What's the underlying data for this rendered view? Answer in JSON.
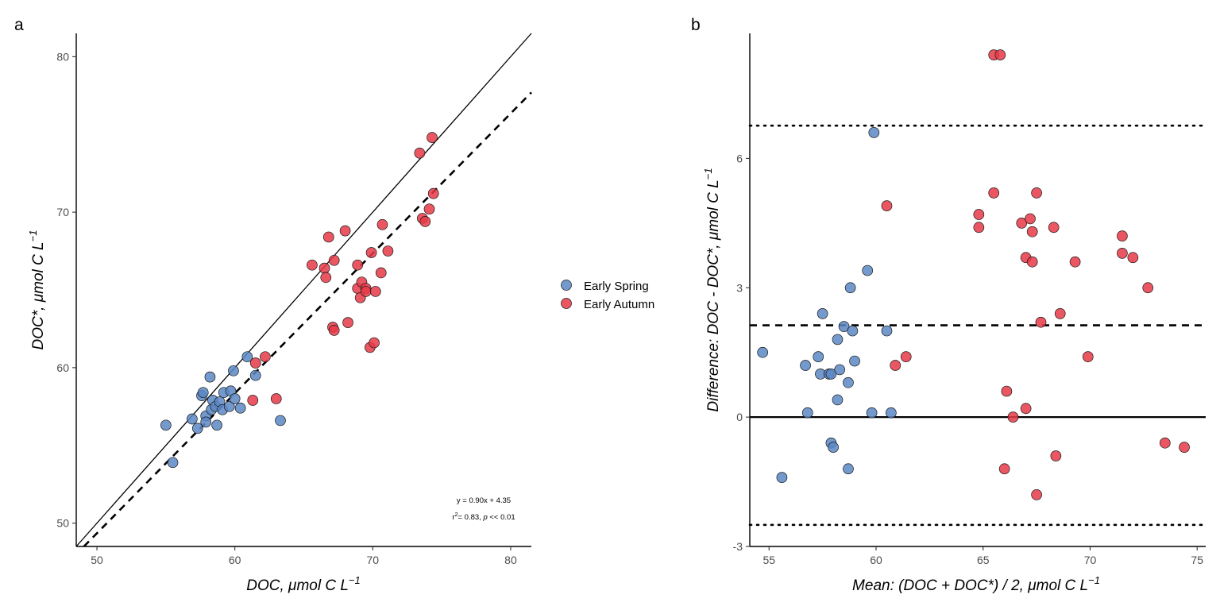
{
  "chart_data": [
    {
      "panel_label": "a",
      "type": "scatter",
      "xlabel": {
        "main": "DOC, ",
        "unit": "μmol C L",
        "sup": "−1"
      },
      "ylabel": {
        "main": "DOC*, ",
        "unit": "μmol C L",
        "sup": "−1"
      },
      "xlim": [
        48.5,
        81.5
      ],
      "ylim": [
        48.5,
        81.5
      ],
      "xticks": [
        50,
        60,
        70,
        80
      ],
      "yticks": [
        50,
        60,
        70,
        80
      ],
      "grid": false,
      "lines": [
        {
          "name": "1:1",
          "style": "solid",
          "slope": 1,
          "intercept": 0
        },
        {
          "name": "regression",
          "style": "dashed",
          "slope": 0.9,
          "intercept": 4.35
        }
      ],
      "annotation": {
        "equation": "y = 0.90x + 4.35",
        "r2_prefix": "r",
        "r2_sup": "2",
        "r2_value": "= 0.83, ",
        "p_italic": "p",
        "p_value": " << 0.01"
      },
      "series": [
        {
          "name": "Early Spring",
          "color": "#5B87C4",
          "points": [
            [
              55.0,
              56.3
            ],
            [
              55.5,
              53.9
            ],
            [
              56.9,
              56.7
            ],
            [
              57.3,
              56.1
            ],
            [
              57.6,
              58.2
            ],
            [
              57.7,
              58.4
            ],
            [
              57.9,
              56.9
            ],
            [
              57.9,
              56.5
            ],
            [
              58.2,
              59.4
            ],
            [
              58.3,
              57.3
            ],
            [
              58.4,
              57.9
            ],
            [
              58.6,
              57.5
            ],
            [
              58.7,
              56.3
            ],
            [
              58.9,
              57.8
            ],
            [
              59.2,
              58.4
            ],
            [
              59.1,
              57.3
            ],
            [
              59.6,
              57.5
            ],
            [
              59.7,
              58.5
            ],
            [
              59.9,
              59.8
            ],
            [
              60.0,
              58.0
            ],
            [
              60.4,
              57.4
            ],
            [
              60.9,
              60.7
            ],
            [
              61.5,
              59.5
            ],
            [
              63.3,
              56.6
            ]
          ]
        },
        {
          "name": "Early Autumn",
          "color": "#E63946",
          "points": [
            [
              61.3,
              57.9
            ],
            [
              61.5,
              60.3
            ],
            [
              62.2,
              60.7
            ],
            [
              63.0,
              58.0
            ],
            [
              65.6,
              66.6
            ],
            [
              66.5,
              66.4
            ],
            [
              66.6,
              65.8
            ],
            [
              66.8,
              68.4
            ],
            [
              67.1,
              62.6
            ],
            [
              67.2,
              62.4
            ],
            [
              67.2,
              66.9
            ],
            [
              68.0,
              68.8
            ],
            [
              68.2,
              62.9
            ],
            [
              68.9,
              66.6
            ],
            [
              68.9,
              65.1
            ],
            [
              69.1,
              64.5
            ],
            [
              69.2,
              65.5
            ],
            [
              69.5,
              65.1
            ],
            [
              69.5,
              64.9
            ],
            [
              69.8,
              61.3
            ],
            [
              69.9,
              67.4
            ],
            [
              70.1,
              61.6
            ],
            [
              70.2,
              64.9
            ],
            [
              70.6,
              66.1
            ],
            [
              70.7,
              69.2
            ],
            [
              71.1,
              67.5
            ],
            [
              73.4,
              73.8
            ],
            [
              73.6,
              69.6
            ],
            [
              73.8,
              69.4
            ],
            [
              74.1,
              70.2
            ],
            [
              74.3,
              74.8
            ],
            [
              74.4,
              71.2
            ]
          ]
        }
      ]
    },
    {
      "panel_label": "b",
      "type": "scatter",
      "xlabel": {
        "main": "Mean: (DOC + DOC*) / 2, ",
        "unit": "μmol C L",
        "sup": "−1"
      },
      "ylabel": {
        "main": "Difference: DOC - DOC*, ",
        "unit": "μmol C L",
        "sup": "−1"
      },
      "xlim": [
        54.1,
        75.4
      ],
      "ylim": [
        -3.0,
        8.9
      ],
      "xticks": [
        55,
        60,
        65,
        70,
        75
      ],
      "yticks": [
        -3,
        0,
        3,
        6
      ],
      "grid": false,
      "hlines": [
        {
          "name": "zero",
          "style": "solid",
          "y": 0
        },
        {
          "name": "mean-difference",
          "style": "dashed",
          "y": 2.13
        },
        {
          "name": "upper-limit",
          "style": "dotted",
          "y": 6.76
        },
        {
          "name": "lower-limit",
          "style": "dotted",
          "y": -2.5
        }
      ],
      "series": [
        {
          "name": "Early Spring",
          "color": "#5B87C4",
          "points": [
            [
              54.7,
              1.5
            ],
            [
              55.6,
              -1.4
            ],
            [
              56.7,
              1.2
            ],
            [
              56.8,
              0.1
            ],
            [
              57.3,
              1.4
            ],
            [
              57.4,
              1.0
            ],
            [
              57.5,
              2.4
            ],
            [
              57.8,
              1.0
            ],
            [
              57.9,
              -0.6
            ],
            [
              57.9,
              1.0
            ],
            [
              58.0,
              -0.7
            ],
            [
              58.2,
              1.8
            ],
            [
              58.2,
              0.4
            ],
            [
              58.3,
              1.1
            ],
            [
              58.5,
              2.1
            ],
            [
              58.7,
              0.8
            ],
            [
              58.7,
              -1.2
            ],
            [
              58.8,
              3.0
            ],
            [
              58.9,
              2.0
            ],
            [
              59.0,
              1.3
            ],
            [
              59.6,
              3.4
            ],
            [
              59.8,
              0.1
            ],
            [
              59.9,
              6.6
            ],
            [
              60.5,
              2.0
            ],
            [
              60.7,
              0.1
            ]
          ]
        },
        {
          "name": "Early Autumn",
          "color": "#E63946",
          "points": [
            [
              60.5,
              4.9
            ],
            [
              60.9,
              1.2
            ],
            [
              61.4,
              1.4
            ],
            [
              64.8,
              4.7
            ],
            [
              64.8,
              4.4
            ],
            [
              65.5,
              5.2
            ],
            [
              65.5,
              8.4
            ],
            [
              65.8,
              8.4
            ],
            [
              66.0,
              -1.2
            ],
            [
              66.1,
              0.6
            ],
            [
              66.4,
              0.0
            ],
            [
              66.8,
              4.5
            ],
            [
              67.0,
              3.7
            ],
            [
              67.0,
              0.2
            ],
            [
              67.2,
              4.6
            ],
            [
              67.3,
              3.6
            ],
            [
              67.3,
              4.3
            ],
            [
              67.5,
              5.2
            ],
            [
              67.5,
              -1.8
            ],
            [
              67.7,
              2.2
            ],
            [
              68.3,
              4.4
            ],
            [
              68.4,
              -0.9
            ],
            [
              68.6,
              2.4
            ],
            [
              69.3,
              3.6
            ],
            [
              69.9,
              1.4
            ],
            [
              71.5,
              4.2
            ],
            [
              71.5,
              3.8
            ],
            [
              72.0,
              3.7
            ],
            [
              72.7,
              3.0
            ],
            [
              73.5,
              -0.6
            ],
            [
              74.4,
              -0.7
            ]
          ]
        }
      ]
    }
  ],
  "legend": {
    "items": [
      {
        "label": "Early Spring",
        "color": "#5B87C4"
      },
      {
        "label": "Early Autumn",
        "color": "#E63946"
      }
    ]
  }
}
